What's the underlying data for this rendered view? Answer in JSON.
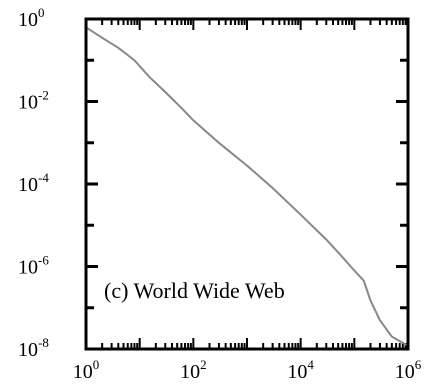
{
  "chart_data": {
    "type": "line",
    "xscale": "log",
    "yscale": "log",
    "xlim": [
      1,
      1000000
    ],
    "ylim": [
      1e-08,
      1
    ],
    "grid": false,
    "x_ticks": [
      {
        "value": 1,
        "base": "10",
        "exp": "0"
      },
      {
        "value": 100,
        "base": "10",
        "exp": "2"
      },
      {
        "value": 10000,
        "base": "10",
        "exp": "4"
      },
      {
        "value": 1000000,
        "base": "10",
        "exp": "6"
      }
    ],
    "y_ticks": [
      {
        "value": 1,
        "base": "10",
        "exp": "0"
      },
      {
        "value": 0.01,
        "base": "10",
        "exp": "-2"
      },
      {
        "value": 0.0001,
        "base": "10",
        "exp": "-4"
      },
      {
        "value": 1e-06,
        "base": "10",
        "exp": "-6"
      },
      {
        "value": 1e-08,
        "base": "10",
        "exp": "-8"
      }
    ],
    "annotation": "(c) World Wide Web",
    "series": [
      {
        "color": "#888888",
        "x": [
          1,
          2,
          4,
          8,
          15,
          30,
          60,
          100,
          300,
          1000,
          3000,
          10000,
          30000,
          50000,
          100000,
          150000,
          200000,
          300000,
          500000,
          1000000
        ],
        "y": [
          0.63,
          0.35,
          0.2,
          0.1,
          0.04,
          0.017,
          0.007,
          0.0035,
          0.001,
          0.00028,
          8e-05,
          1.8e-05,
          4.5e-06,
          2.2e-06,
          8e-07,
          4.5e-07,
          1.5e-07,
          5e-08,
          2e-08,
          1.2e-08
        ]
      }
    ]
  }
}
